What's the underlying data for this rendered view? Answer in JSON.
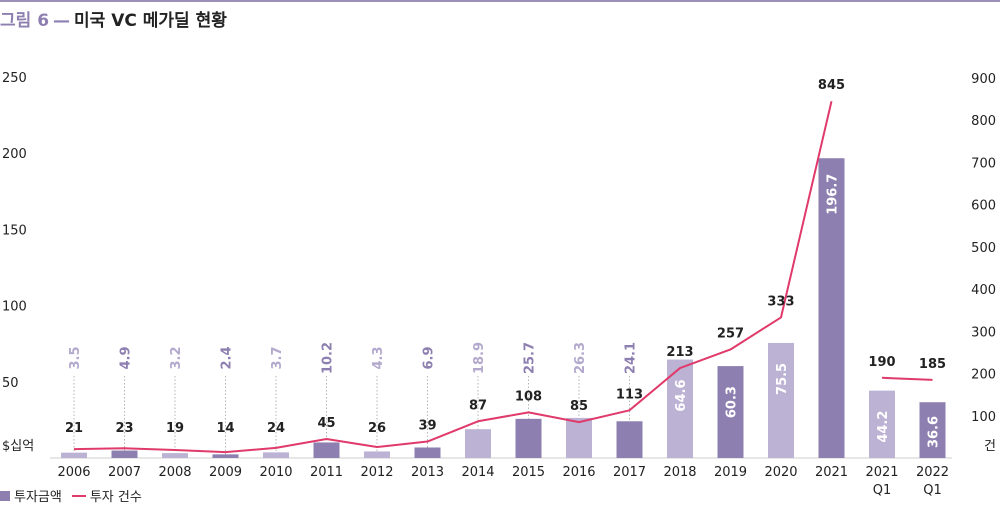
{
  "title": {
    "prefix": "그림 6",
    "separator": "—",
    "main": "미국 VC 메가딜 현황"
  },
  "legend": {
    "bar_label": "투자금액",
    "line_label": "투자 건수"
  },
  "colors": {
    "bar_dark": "#8e7fb1",
    "bar_light": "#bcb2d4",
    "line": "#e03a6a",
    "label_dark": "#8e7fb1",
    "label_light": "#b3a9cd",
    "rule": "#9b8fb9"
  },
  "chart_data": {
    "type": "bar",
    "categories": [
      "2006",
      "2007",
      "2008",
      "2009",
      "2010",
      "2011",
      "2012",
      "2013",
      "2014",
      "2015",
      "2016",
      "2017",
      "2018",
      "2019",
      "2020",
      "2021",
      "2021\nQ1",
      "2022\nQ1"
    ],
    "series": [
      {
        "name": "투자금액",
        "axis": "left",
        "values": [
          3.5,
          4.9,
          3.2,
          2.4,
          3.7,
          10.2,
          4.3,
          6.9,
          18.9,
          25.7,
          26.3,
          24.1,
          64.6,
          60.3,
          75.5,
          196.7,
          44.2,
          36.6
        ],
        "shade": [
          "light",
          "dark",
          "light",
          "dark",
          "light",
          "dark",
          "light",
          "dark",
          "light",
          "dark",
          "light",
          "dark",
          "light",
          "dark",
          "light",
          "dark",
          "light",
          "dark"
        ]
      },
      {
        "name": "투자 건수",
        "axis": "right",
        "type": "line",
        "values": [
          21,
          23,
          19,
          14,
          24,
          45,
          26,
          39,
          87,
          108,
          85,
          113,
          213,
          257,
          333,
          845,
          190,
          185
        ],
        "segments": [
          [
            0,
            15
          ],
          [
            16,
            17
          ]
        ]
      }
    ],
    "y_left": {
      "unit": "$십억",
      "ticks": [
        50,
        100,
        150,
        200,
        250
      ],
      "ylim": [
        0,
        250
      ]
    },
    "y_right": {
      "unit": "건",
      "ticks": [
        100,
        200,
        300,
        400,
        500,
        600,
        700,
        800,
        900
      ],
      "ylim": [
        0,
        900
      ]
    },
    "grid": false
  }
}
